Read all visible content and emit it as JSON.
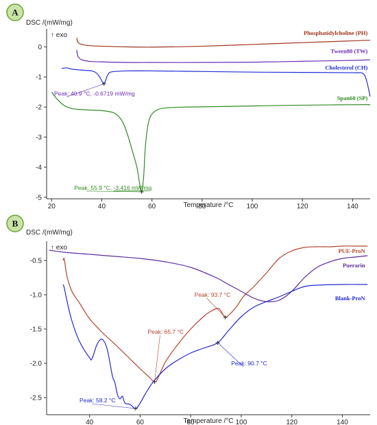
{
  "chart_data": [
    {
      "panel": "A",
      "type": "line",
      "ylabel": "DSC /(mW/mg)",
      "exo_label": "↑ exo",
      "xlabel": "Temperature /°C",
      "xlim": [
        18,
        147
      ],
      "ylim": [
        -5.05,
        0.6
      ],
      "xticks": [
        20,
        40,
        60,
        80,
        100,
        120,
        140
      ],
      "yticks": [
        0,
        -1,
        -2,
        -3,
        -4,
        -5
      ],
      "grid": false,
      "series": [
        {
          "name": "Phosphatidylcholine (PH)",
          "color": "#a0341c",
          "label_at": [
            146,
            0.4
          ],
          "x": [
            30,
            30.5,
            32,
            35,
            40,
            50,
            60,
            80,
            100,
            120,
            140,
            147
          ],
          "y": [
            0.3,
            0.15,
            0.08,
            0.04,
            0.02,
            0.0,
            -0.01,
            0.02,
            0.08,
            0.14,
            0.2,
            0.22
          ]
        },
        {
          "name": "Tween80 (TW)",
          "color": "#6a2bb5",
          "label_at": [
            146,
            -0.21
          ],
          "x": [
            30,
            30.5,
            32,
            35,
            40,
            50,
            60,
            80,
            100,
            120,
            140,
            147
          ],
          "y": [
            -0.1,
            -0.32,
            -0.43,
            -0.48,
            -0.5,
            -0.52,
            -0.52,
            -0.52,
            -0.51,
            -0.48,
            -0.45,
            -0.43
          ]
        },
        {
          "name": "Cholesterol (CH)",
          "color": "#1f2bd6",
          "label_at": [
            146,
            -0.75
          ],
          "x": [
            24,
            26,
            28,
            30,
            33,
            36,
            38,
            39.5,
            40.9,
            42,
            43,
            45,
            50,
            60,
            80,
            100,
            120,
            140,
            144,
            145.5,
            147
          ],
          "y": [
            -0.72,
            -0.7,
            -0.74,
            -0.76,
            -0.78,
            -0.8,
            -0.88,
            -1.05,
            -1.23,
            -1.0,
            -0.86,
            -0.82,
            -0.8,
            -0.8,
            -0.82,
            -0.84,
            -0.85,
            -0.86,
            -0.88,
            -1.1,
            -1.65
          ]
        },
        {
          "name": "Span60 (SP)",
          "color": "#2e8b20",
          "label_at": [
            146,
            -1.77
          ],
          "x": [
            20,
            22,
            25,
            28,
            31,
            35,
            40,
            45,
            48,
            50,
            52,
            54,
            55,
            55.9,
            56.7,
            57.5,
            59,
            62,
            67,
            75,
            90,
            110,
            130,
            147
          ],
          "y": [
            -1.5,
            -1.72,
            -1.95,
            -2.05,
            -2.08,
            -2.1,
            -2.12,
            -2.2,
            -2.45,
            -2.85,
            -3.4,
            -4.0,
            -4.5,
            -4.82,
            -4.3,
            -3.2,
            -2.4,
            -2.1,
            -2.02,
            -2.0,
            -1.98,
            -1.95,
            -1.93,
            -1.92
          ]
        }
      ],
      "peaks": [
        {
          "label_prefix": "Peak: ",
          "label_temp": "40.9 °C",
          "label_sep": ", ",
          "label_value": "-0.6719 mW/mg",
          "color": "#6a2bb5",
          "x": 40.9,
          "y": -1.23,
          "text_at": [
            21,
            -1.62
          ]
        },
        {
          "label_prefix": "Peak: ",
          "label_temp": "55.9 °C",
          "label_sep": ", ",
          "label_value": "-3.416 mW/mg",
          "color": "#2e8b20",
          "x": 55.9,
          "y": -4.82,
          "text_at": [
            29,
            -4.75
          ]
        }
      ]
    },
    {
      "panel": "B",
      "type": "line",
      "ylabel": "DSC /(mW/mg)",
      "exo_label": "↑ exo",
      "xlabel": "Temperature /°C",
      "xlim": [
        23,
        151
      ],
      "ylim": [
        -2.75,
        -0.22
      ],
      "xticks": [
        40,
        60,
        80,
        100,
        120,
        140
      ],
      "yticks": [
        -0.5,
        -1.0,
        -1.5,
        -2.0,
        -2.5
      ],
      "grid": false,
      "series": [
        {
          "name": "PUE-ProN",
          "color": "#b2432a",
          "label_at": [
            149,
            -0.39
          ],
          "x": [
            29.5,
            30,
            31,
            33,
            36,
            40,
            45,
            50,
            55,
            60,
            63,
            65.7,
            67,
            70,
            75,
            80,
            85,
            88,
            91,
            93,
            93.7,
            95,
            98,
            101,
            105,
            110,
            115,
            120,
            125,
            130,
            135,
            140,
            145,
            150
          ],
          "y": [
            -0.5,
            -0.48,
            -0.72,
            -0.95,
            -1.12,
            -1.35,
            -1.55,
            -1.72,
            -1.9,
            -2.08,
            -2.18,
            -2.27,
            -2.22,
            -1.98,
            -1.72,
            -1.5,
            -1.32,
            -1.24,
            -1.2,
            -1.3,
            -1.33,
            -1.3,
            -1.18,
            -1.02,
            -0.88,
            -0.68,
            -0.47,
            -0.36,
            -0.31,
            -0.3,
            -0.3,
            -0.29,
            -0.29,
            -0.29
          ]
        },
        {
          "name": "Puerarin",
          "color": "#5b2b9e",
          "label_at": [
            149,
            -0.6
          ],
          "x": [
            24,
            30,
            40,
            50,
            60,
            70,
            80,
            90,
            95,
            100,
            105,
            110,
            115,
            120,
            125,
            130,
            135,
            140,
            145,
            150
          ],
          "y": [
            -0.35,
            -0.38,
            -0.41,
            -0.44,
            -0.47,
            -0.52,
            -0.6,
            -0.75,
            -0.85,
            -0.95,
            -1.05,
            -1.1,
            -1.08,
            -0.95,
            -0.75,
            -0.6,
            -0.52,
            -0.47,
            -0.45,
            -0.43
          ]
        },
        {
          "name": "Blank-ProN",
          "color": "#2326cf",
          "label_at": [
            149,
            -1.08
          ],
          "x": [
            29.5,
            30,
            31,
            33,
            36,
            40,
            41,
            43,
            45,
            47,
            49,
            50,
            51,
            52,
            53,
            54,
            56,
            58.2,
            60,
            62,
            65,
            70,
            75,
            80,
            85,
            90.7,
            95,
            100,
            105,
            110,
            115,
            120,
            125,
            130,
            140,
            150
          ],
          "y": [
            -0.85,
            -0.9,
            -1.08,
            -1.38,
            -1.68,
            -1.92,
            -1.93,
            -1.72,
            -1.65,
            -1.8,
            -2.18,
            -2.28,
            -2.45,
            -2.52,
            -2.48,
            -2.58,
            -2.6,
            -2.66,
            -2.58,
            -2.45,
            -2.28,
            -2.08,
            -1.95,
            -1.85,
            -1.78,
            -1.7,
            -1.52,
            -1.32,
            -1.18,
            -1.1,
            -1.03,
            -0.95,
            -0.88,
            -0.86,
            -0.85,
            -0.85
          ]
        }
      ],
      "peaks": [
        {
          "label_prefix": "Peak: ",
          "label_temp": "93.7 °C",
          "color": "#b2432a",
          "x": 93.7,
          "y": -1.33,
          "text_at": [
            81.5,
            -1.03
          ]
        },
        {
          "label_prefix": "Peak: ",
          "label_temp": "65.7 °C",
          "color": "#b2432a",
          "x": 65.7,
          "y": -2.27,
          "text_at": [
            63,
            -1.57
          ]
        },
        {
          "label_prefix": "Peak: ",
          "label_temp": "90.7 °C",
          "color": "#2326cf",
          "x": 90.7,
          "y": -1.7,
          "text_at": [
            96,
            -2.03
          ]
        },
        {
          "label_prefix": "Peak: ",
          "label_temp": "58.2 °C",
          "color": "#2326cf",
          "x": 58.2,
          "y": -2.66,
          "text_at": [
            36,
            -2.57
          ]
        }
      ]
    }
  ]
}
